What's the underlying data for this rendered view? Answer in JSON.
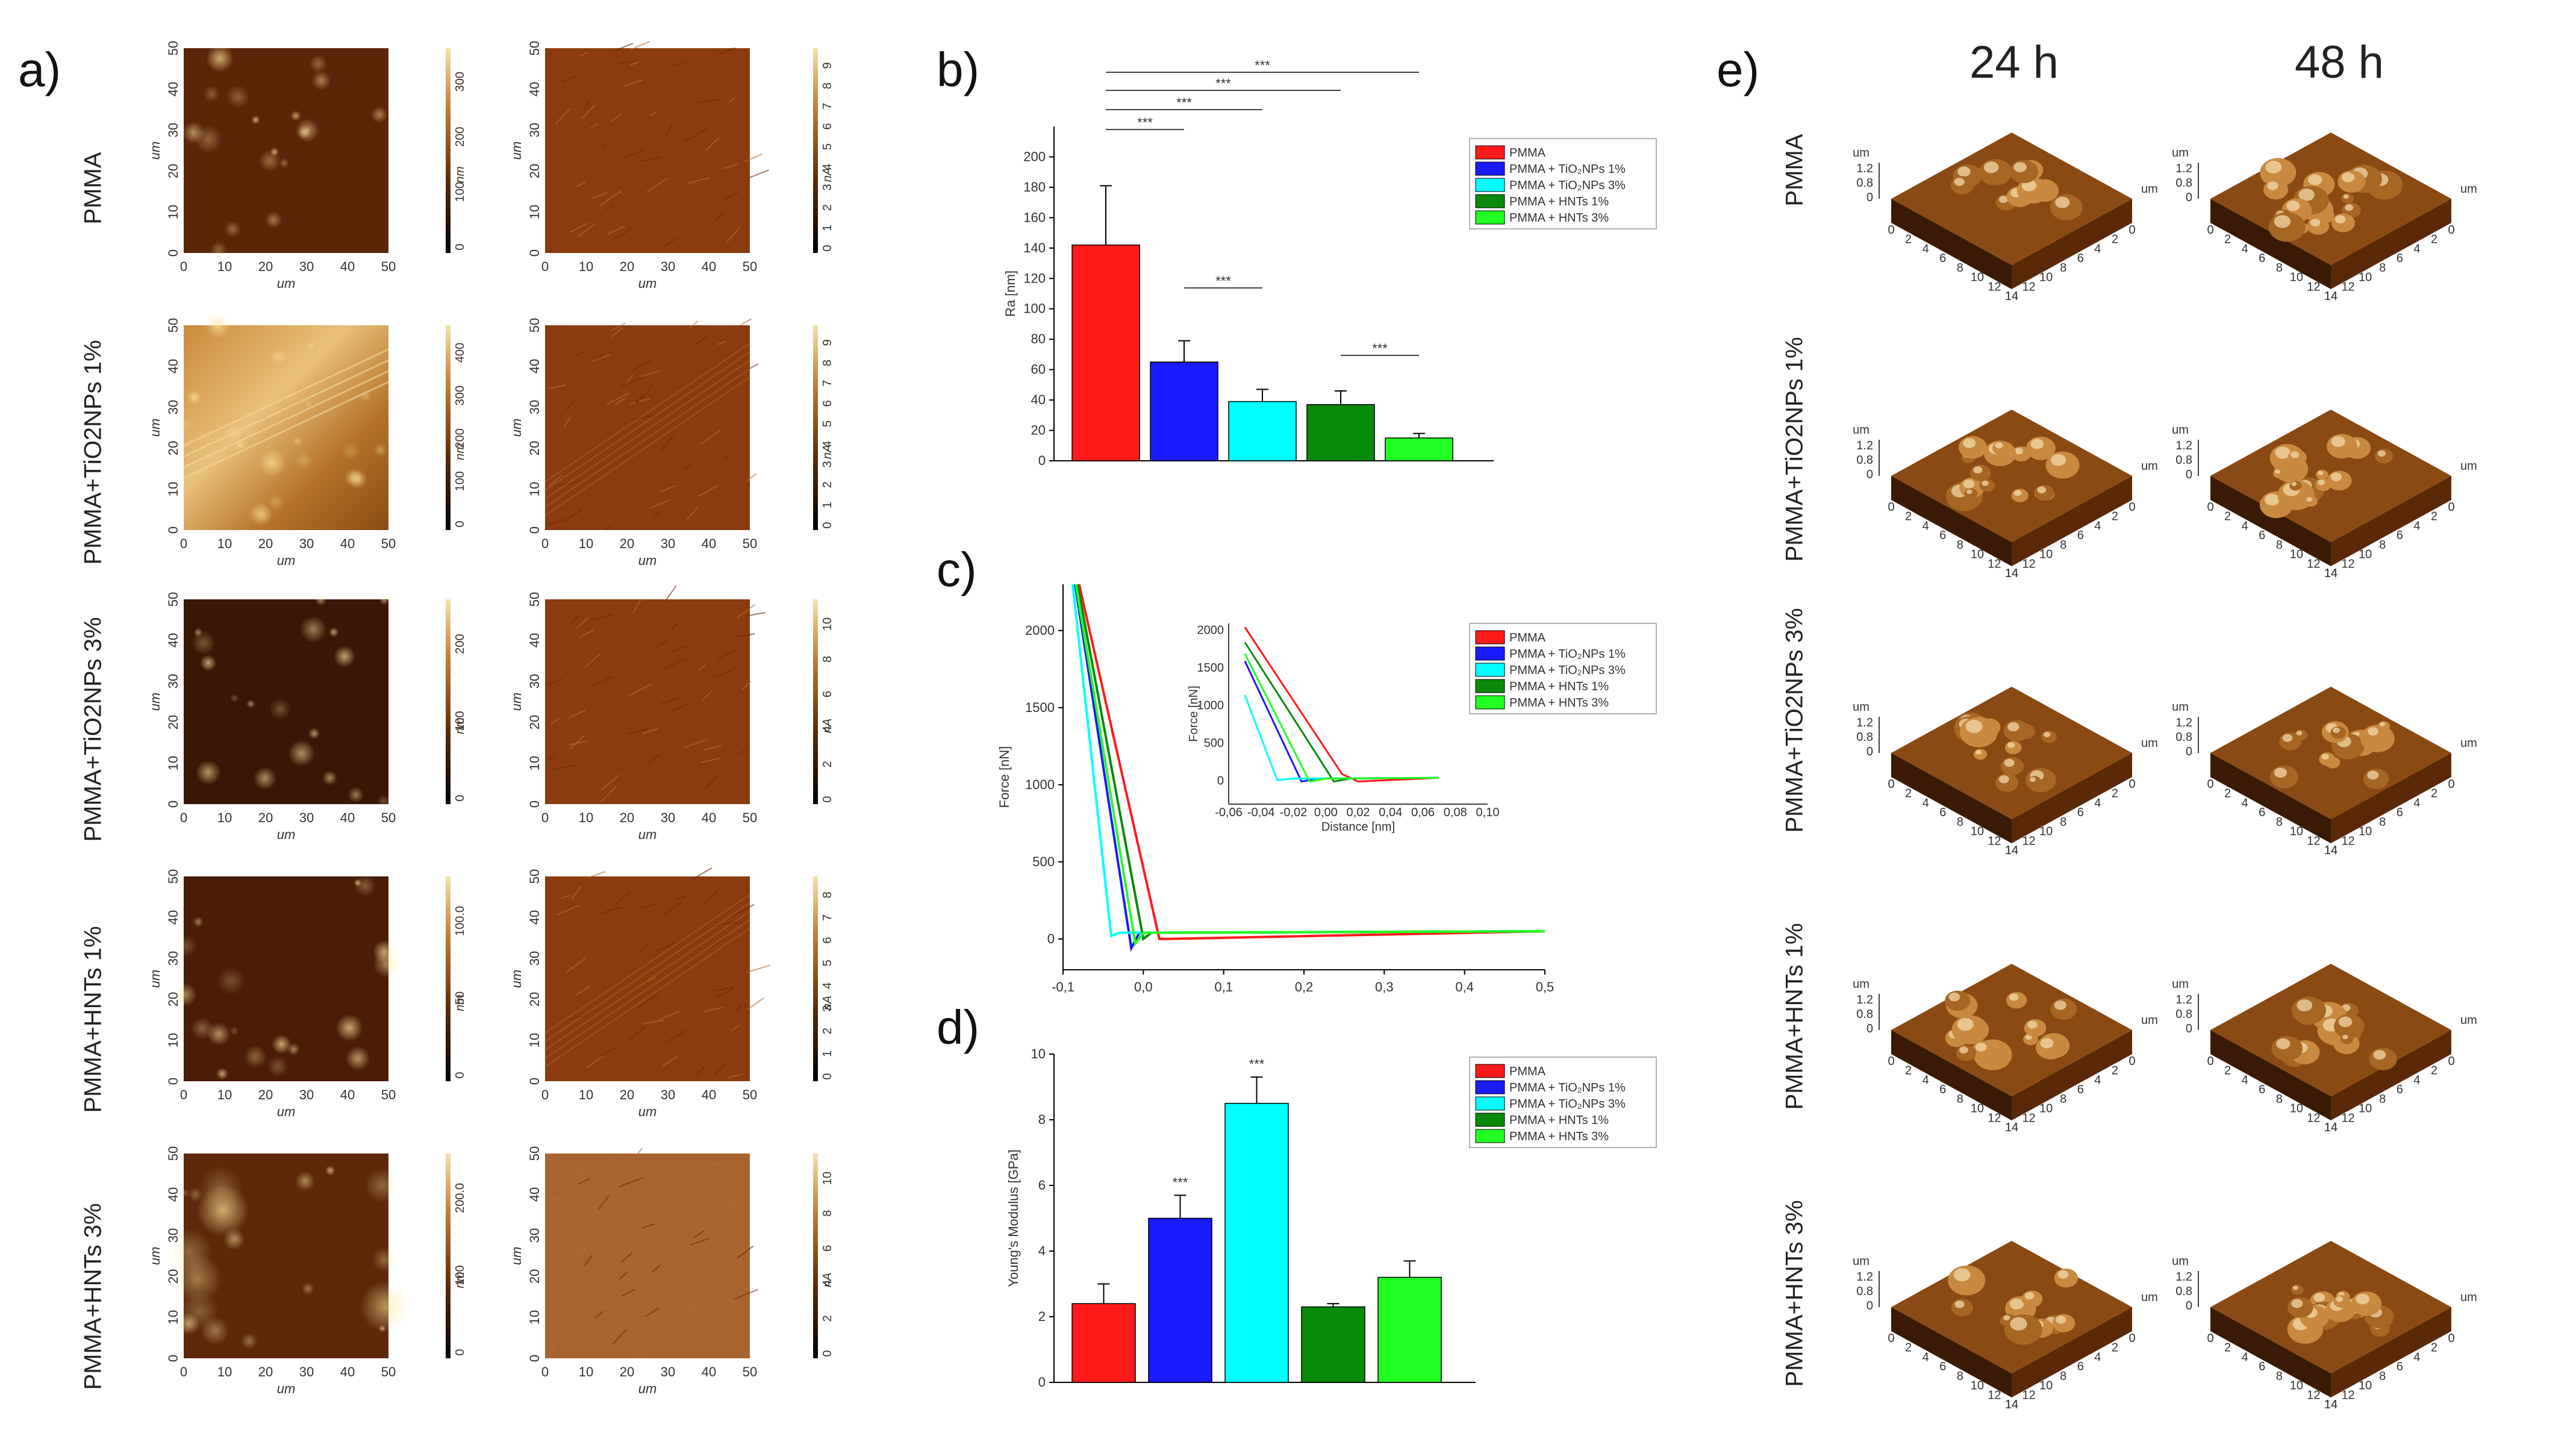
{
  "panel_letters": {
    "a": "a)",
    "b": "b)",
    "c": "c)",
    "d": "d)",
    "e": "e)"
  },
  "colors": {
    "pmma": "#ff1a1a",
    "tio2_1": "#1a1aff",
    "tio2_3": "#00ffff",
    "hnt_1": "#0a8a0a",
    "hnt_3": "#22ff22"
  },
  "afm": {
    "unit_um": "um",
    "unit_nm": "nm",
    "unit_na": "nA",
    "axis_ticks": [
      "0",
      "10",
      "20",
      "30",
      "40",
      "50"
    ],
    "rows": [
      {
        "label": "PMMA",
        "height_ticks": [
          "0",
          "100",
          "200",
          "300"
        ],
        "current_ticks": [
          "0",
          "1",
          "2",
          "3",
          "4",
          "5",
          "6",
          "7",
          "8",
          "9"
        ]
      },
      {
        "label": "PMMA+TiO2NPs 1%",
        "height_ticks": [
          "0",
          "100",
          "200",
          "300",
          "400"
        ],
        "current_ticks": [
          "0",
          "1",
          "2",
          "3",
          "4",
          "5",
          "6",
          "7",
          "8",
          "9"
        ]
      },
      {
        "label": "PMMA+TiO2NPs 3%",
        "height_ticks": [
          "0",
          "100",
          "200"
        ],
        "current_ticks": [
          "0",
          "2",
          "4",
          "6",
          "8",
          "10"
        ]
      },
      {
        "label": "PMMA+HNTs 1%",
        "height_ticks": [
          "0",
          "50",
          "100.0"
        ],
        "current_ticks": [
          "0",
          "1",
          "2",
          "3",
          "4",
          "5",
          "6",
          "7",
          "8"
        ]
      },
      {
        "label": "PMMA+HNTs 3%",
        "height_ticks": [
          "0",
          "100",
          "200.0"
        ],
        "current_ticks": [
          "0",
          "2",
          "4",
          "6",
          "8",
          "10"
        ]
      }
    ]
  },
  "legend": [
    "PMMA",
    "PMMA + TiO₂NPs 1%",
    "PMMA + TiO₂NPs 3%",
    "PMMA + HNTs 1%",
    "PMMA + HNTs 3%"
  ],
  "chart_data": [
    {
      "id": "b",
      "type": "bar",
      "ylabel": "Ra [nm]",
      "ylim": [
        0,
        220
      ],
      "yticks": [
        0,
        20,
        40,
        60,
        80,
        100,
        120,
        140,
        160,
        180,
        200
      ],
      "categories": [
        "PMMA",
        "PMMA + TiO2NPs 1%",
        "PMMA + TiO2NPs 3%",
        "PMMA + HNTs 1%",
        "PMMA + HNTs 3%"
      ],
      "values": [
        142,
        65,
        39,
        37,
        15
      ],
      "errors": [
        39,
        14,
        8,
        9,
        3
      ],
      "significance": [
        {
          "from": 0,
          "to": 1,
          "label": "***"
        },
        {
          "from": 0,
          "to": 2,
          "label": "***"
        },
        {
          "from": 0,
          "to": 3,
          "label": "***"
        },
        {
          "from": 0,
          "to": 4,
          "label": "***"
        },
        {
          "from": 1,
          "to": 2,
          "label": "***"
        },
        {
          "from": 3,
          "to": 4,
          "label": "***"
        }
      ]
    },
    {
      "id": "c",
      "type": "line",
      "xlabel": "Distance [nm]",
      "ylabel": "Force [nN]",
      "xlim": [
        -0.1,
        0.5
      ],
      "ylim": [
        -200,
        2300
      ],
      "xticks": [
        "-0,1",
        "0,0",
        "0,1",
        "0,2",
        "0,3",
        "0,4",
        "0,5"
      ],
      "yticks": [
        0,
        500,
        1000,
        1500,
        2000
      ],
      "series": [
        {
          "name": "PMMA",
          "x": [
            -0.08,
            0.02,
            0.03,
            0.5
          ],
          "y": [
            2300,
            0,
            0,
            50
          ]
        },
        {
          "name": "PMMA + TiO2NPs 1%",
          "x": [
            -0.085,
            -0.015,
            -0.005,
            0.5
          ],
          "y": [
            2300,
            -60,
            40,
            50
          ]
        },
        {
          "name": "PMMA + TiO2NPs 3%",
          "x": [
            -0.088,
            -0.04,
            -0.03,
            0.5
          ],
          "y": [
            2300,
            20,
            40,
            50
          ]
        },
        {
          "name": "PMMA + HNTs 1%",
          "x": [
            -0.082,
            0.0,
            0.01,
            0.5
          ],
          "y": [
            2300,
            0,
            40,
            50
          ]
        },
        {
          "name": "PMMA + HNTs 3%",
          "x": [
            -0.084,
            -0.01,
            0.0,
            0.5
          ],
          "y": [
            2300,
            -30,
            40,
            50
          ]
        }
      ],
      "inset": {
        "xlabel": "Distance [nm]",
        "ylabel": "Force [nN]",
        "xlim": [
          -0.06,
          0.1
        ],
        "ylim": [
          -300,
          2100
        ],
        "xticks": [
          "-0,06",
          "-0,04",
          "-0,02",
          "0,00",
          "0,02",
          "0,04",
          "0,06",
          "0,08",
          "0,10"
        ],
        "yticks": [
          0,
          500,
          1000,
          1500,
          2000
        ],
        "series": [
          {
            "name": "PMMA",
            "x": [
              -0.05,
              0.01,
              0.02,
              0.07
            ],
            "y": [
              2050,
              100,
              0,
              50
            ]
          },
          {
            "name": "PMMA + TiO2NPs 1%",
            "x": [
              -0.05,
              -0.015,
              -0.005,
              0.07
            ],
            "y": [
              1600,
              0,
              40,
              50
            ]
          },
          {
            "name": "PMMA + TiO2NPs 3%",
            "x": [
              -0.05,
              -0.03,
              -0.02,
              0.07
            ],
            "y": [
              1150,
              20,
              40,
              50
            ]
          },
          {
            "name": "PMMA + HNTs 1%",
            "x": [
              -0.05,
              0.005,
              0.015,
              0.07
            ],
            "y": [
              1850,
              0,
              40,
              50
            ]
          },
          {
            "name": "PMMA + HNTs 3%",
            "x": [
              -0.05,
              -0.01,
              0.0,
              0.07
            ],
            "y": [
              1700,
              0,
              40,
              50
            ]
          }
        ]
      }
    },
    {
      "id": "d",
      "type": "bar",
      "ylabel": "Young's Modulus [GPa]",
      "ylim": [
        0,
        10
      ],
      "yticks": [
        0,
        2,
        4,
        6,
        8,
        10
      ],
      "categories": [
        "PMMA",
        "PMMA + TiO2NPs 1%",
        "PMMA + TiO2NPs 3%",
        "PMMA + HNTs 1%",
        "PMMA + HNTs 3%"
      ],
      "values": [
        2.4,
        5.0,
        8.5,
        2.3,
        3.2
      ],
      "errors": [
        0.6,
        0.7,
        0.8,
        0.1,
        0.5
      ],
      "bar_labels": [
        "",
        "***",
        "***",
        "",
        ""
      ]
    }
  ],
  "topography": {
    "columns": [
      "24 h",
      "48 h"
    ],
    "rows": [
      "PMMA",
      "PMMA+TiO2NPs 1%",
      "PMMA+TiO2NPs 3%",
      "PMMA+HNTs 1%",
      "PMMA+HNTs 3%"
    ],
    "unit": "um",
    "z_ticks": [
      "0",
      "0.8",
      "1.2"
    ],
    "xy_ticks": [
      "0",
      "2",
      "4",
      "6",
      "8",
      "10",
      "12",
      "14"
    ]
  }
}
